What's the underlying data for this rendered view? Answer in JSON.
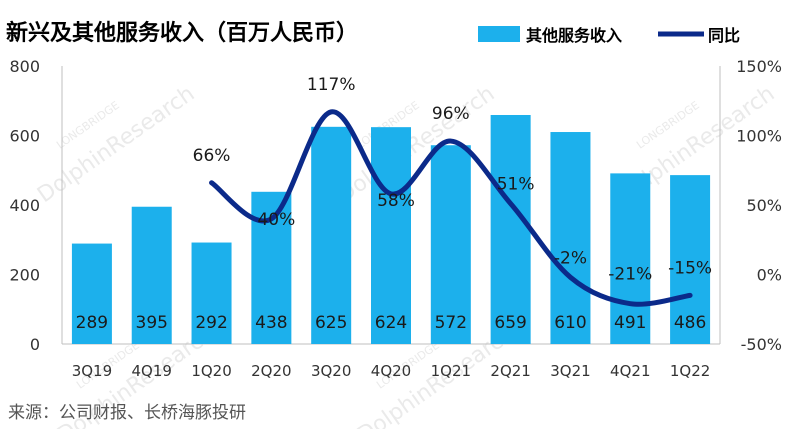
{
  "chart_data": {
    "type": "bar",
    "title": "新兴及其他服务收入（百万人民币）",
    "categories": [
      "3Q19",
      "4Q19",
      "1Q20",
      "2Q20",
      "3Q20",
      "4Q20",
      "1Q21",
      "2Q21",
      "3Q21",
      "4Q21",
      "1Q22"
    ],
    "series": [
      {
        "name": "其他服务收入",
        "type": "bar",
        "axis": "left",
        "values": [
          289,
          395,
          292,
          438,
          625,
          624,
          572,
          659,
          610,
          491,
          486
        ],
        "labels": [
          "289",
          "395",
          "292",
          "438",
          "625",
          "624",
          "572",
          "659",
          "610",
          "491",
          "486"
        ]
      },
      {
        "name": "同比",
        "type": "line",
        "axis": "right",
        "values": [
          null,
          null,
          66,
          40,
          117,
          58,
          96,
          51,
          -2,
          -21,
          -15
        ],
        "labels": [
          "",
          "",
          "66%",
          "40%",
          "117%",
          "58%",
          "96%",
          "51%",
          "-2%",
          "-21%",
          "-15%"
        ]
      }
    ],
    "y_left": {
      "min": 0,
      "max": 800,
      "ticks": [
        "0",
        "200",
        "400",
        "600",
        "800"
      ]
    },
    "y_right": {
      "min": -50,
      "max": 150,
      "ticks": [
        "-50%",
        "0%",
        "50%",
        "100%",
        "150%"
      ]
    },
    "legend_position": "top-right",
    "grid": false,
    "colors": {
      "bar": "#1cb0ec",
      "line": "#0b2a8a"
    }
  },
  "source": "来源：公司财报、长桥海豚投研",
  "watermark": {
    "main": "DolphinResearch",
    "sub": "LONGBRIDGE"
  }
}
